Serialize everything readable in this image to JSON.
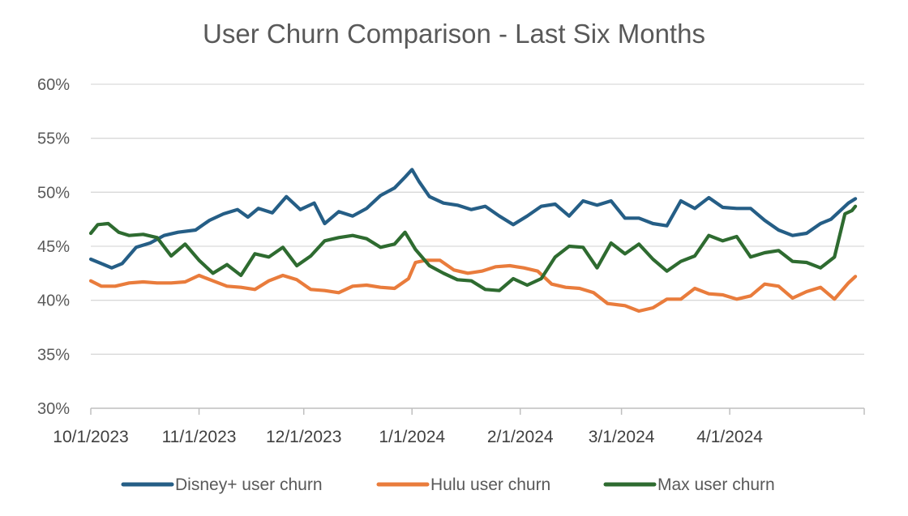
{
  "chart_data": {
    "type": "line",
    "title": "User Churn Comparison - Last Six Months",
    "xlabel": "",
    "ylabel": "",
    "ylim": [
      0.3,
      0.6
    ],
    "yticks": [
      "30%",
      "35%",
      "40%",
      "45%",
      "50%",
      "55%",
      "60%"
    ],
    "xticks": [
      "10/1/2023",
      "11/1/2023",
      "12/1/2023",
      "1/1/2024",
      "2/1/2024",
      "3/1/2024",
      "4/1/2024"
    ],
    "x_range": [
      "10/1/2023",
      "4/30/2024"
    ],
    "grid": "horizontal",
    "legend": "bottom",
    "series": [
      {
        "name": "Disney+ user churn",
        "color": "#255e86",
        "points": [
          [
            "10/1/2023",
            0.438
          ],
          [
            "10/4/2023",
            0.434
          ],
          [
            "10/7/2023",
            0.43
          ],
          [
            "10/10/2023",
            0.434
          ],
          [
            "10/14/2023",
            0.449
          ],
          [
            "10/18/2023",
            0.453
          ],
          [
            "10/22/2023",
            0.46
          ],
          [
            "10/26/2023",
            0.463
          ],
          [
            "10/31/2023",
            0.465
          ],
          [
            "11/4/2023",
            0.474
          ],
          [
            "11/8/2023",
            0.48
          ],
          [
            "11/12/2023",
            0.484
          ],
          [
            "11/15/2023",
            0.477
          ],
          [
            "11/18/2023",
            0.485
          ],
          [
            "11/22/2023",
            0.481
          ],
          [
            "11/26/2023",
            0.496
          ],
          [
            "11/30/2023",
            0.484
          ],
          [
            "12/4/2023",
            0.49
          ],
          [
            "12/7/2023",
            0.471
          ],
          [
            "12/11/2023",
            0.482
          ],
          [
            "12/15/2023",
            0.478
          ],
          [
            "12/19/2023",
            0.485
          ],
          [
            "12/23/2023",
            0.497
          ],
          [
            "12/27/2023",
            0.504
          ],
          [
            "12/30/2023",
            0.514
          ],
          [
            "1/1/2024",
            0.521
          ],
          [
            "1/3/2024",
            0.51
          ],
          [
            "1/6/2024",
            0.496
          ],
          [
            "1/10/2024",
            0.49
          ],
          [
            "1/14/2024",
            0.488
          ],
          [
            "1/18/2024",
            0.484
          ],
          [
            "1/22/2024",
            0.487
          ],
          [
            "1/26/2024",
            0.478
          ],
          [
            "1/30/2024",
            0.47
          ],
          [
            "2/3/2024",
            0.478
          ],
          [
            "2/7/2024",
            0.487
          ],
          [
            "2/11/2024",
            0.489
          ],
          [
            "2/15/2024",
            0.478
          ],
          [
            "2/19/2024",
            0.492
          ],
          [
            "2/23/2024",
            0.488
          ],
          [
            "2/27/2024",
            0.492
          ],
          [
            "3/2/2024",
            0.476
          ],
          [
            "3/6/2024",
            0.476
          ],
          [
            "3/10/2024",
            0.471
          ],
          [
            "3/14/2024",
            0.469
          ],
          [
            "3/18/2024",
            0.492
          ],
          [
            "3/22/2024",
            0.485
          ],
          [
            "3/26/2024",
            0.495
          ],
          [
            "3/30/2024",
            0.486
          ],
          [
            "4/3/2024",
            0.485
          ],
          [
            "4/7/2024",
            0.485
          ],
          [
            "4/11/2024",
            0.474
          ],
          [
            "4/15/2024",
            0.465
          ],
          [
            "4/19/2024",
            0.46
          ],
          [
            "4/23/2024",
            0.462
          ],
          [
            "4/27/2024",
            0.471
          ],
          [
            "4/30/2024",
            0.475
          ],
          [
            "5/3/2024",
            0.484
          ],
          [
            "5/5/2024",
            0.49
          ],
          [
            "5/7/2024",
            0.494
          ]
        ]
      },
      {
        "name": "Hulu user churn",
        "color": "#e97c3c",
        "points": [
          [
            "10/1/2023",
            0.418
          ],
          [
            "10/4/2023",
            0.413
          ],
          [
            "10/8/2023",
            0.413
          ],
          [
            "10/12/2023",
            0.416
          ],
          [
            "10/16/2023",
            0.417
          ],
          [
            "10/20/2023",
            0.416
          ],
          [
            "10/24/2023",
            0.416
          ],
          [
            "10/28/2023",
            0.417
          ],
          [
            "11/1/2023",
            0.423
          ],
          [
            "11/5/2023",
            0.418
          ],
          [
            "11/9/2023",
            0.413
          ],
          [
            "11/13/2023",
            0.412
          ],
          [
            "11/17/2023",
            0.41
          ],
          [
            "11/21/2023",
            0.418
          ],
          [
            "11/25/2023",
            0.423
          ],
          [
            "11/29/2023",
            0.419
          ],
          [
            "12/3/2023",
            0.41
          ],
          [
            "12/7/2023",
            0.409
          ],
          [
            "12/11/2023",
            0.407
          ],
          [
            "12/15/2023",
            0.413
          ],
          [
            "12/19/2023",
            0.414
          ],
          [
            "12/23/2023",
            0.412
          ],
          [
            "12/27/2023",
            0.411
          ],
          [
            "12/31/2023",
            0.42
          ],
          [
            "1/2/2024",
            0.435
          ],
          [
            "1/5/2024",
            0.437
          ],
          [
            "1/9/2024",
            0.437
          ],
          [
            "1/13/2024",
            0.428
          ],
          [
            "1/17/2024",
            0.425
          ],
          [
            "1/21/2024",
            0.427
          ],
          [
            "1/25/2024",
            0.431
          ],
          [
            "1/29/2024",
            0.432
          ],
          [
            "2/2/2024",
            0.43
          ],
          [
            "2/6/2024",
            0.427
          ],
          [
            "2/10/2024",
            0.415
          ],
          [
            "2/14/2024",
            0.412
          ],
          [
            "2/18/2024",
            0.411
          ],
          [
            "2/22/2024",
            0.407
          ],
          [
            "2/26/2024",
            0.397
          ],
          [
            "3/2/2024",
            0.395
          ],
          [
            "3/6/2024",
            0.39
          ],
          [
            "3/10/2024",
            0.393
          ],
          [
            "3/14/2024",
            0.401
          ],
          [
            "3/18/2024",
            0.401
          ],
          [
            "3/22/2024",
            0.411
          ],
          [
            "3/26/2024",
            0.406
          ],
          [
            "3/30/2024",
            0.405
          ],
          [
            "4/3/2024",
            0.401
          ],
          [
            "4/7/2024",
            0.404
          ],
          [
            "4/11/2024",
            0.415
          ],
          [
            "4/15/2024",
            0.413
          ],
          [
            "4/19/2024",
            0.402
          ],
          [
            "4/23/2024",
            0.408
          ],
          [
            "4/27/2024",
            0.412
          ],
          [
            "5/1/2024",
            0.401
          ],
          [
            "5/5/2024",
            0.416
          ],
          [
            "5/7/2024",
            0.422
          ]
        ]
      },
      {
        "name": "Max user churn",
        "color": "#2e6b30",
        "points": [
          [
            "10/1/2023",
            0.462
          ],
          [
            "10/3/2023",
            0.47
          ],
          [
            "10/6/2023",
            0.471
          ],
          [
            "10/9/2023",
            0.463
          ],
          [
            "10/12/2023",
            0.46
          ],
          [
            "10/16/2023",
            0.461
          ],
          [
            "10/20/2023",
            0.458
          ],
          [
            "10/24/2023",
            0.441
          ],
          [
            "10/28/2023",
            0.452
          ],
          [
            "11/1/2023",
            0.437
          ],
          [
            "11/5/2023",
            0.425
          ],
          [
            "11/9/2023",
            0.433
          ],
          [
            "11/13/2023",
            0.423
          ],
          [
            "11/17/2023",
            0.443
          ],
          [
            "11/21/2023",
            0.44
          ],
          [
            "11/25/2023",
            0.449
          ],
          [
            "11/29/2023",
            0.432
          ],
          [
            "12/3/2023",
            0.441
          ],
          [
            "12/7/2023",
            0.455
          ],
          [
            "12/11/2023",
            0.458
          ],
          [
            "12/15/2023",
            0.46
          ],
          [
            "12/19/2023",
            0.457
          ],
          [
            "12/23/2023",
            0.449
          ],
          [
            "12/27/2023",
            0.452
          ],
          [
            "12/30/2023",
            0.463
          ],
          [
            "1/2/2024",
            0.447
          ],
          [
            "1/6/2024",
            0.432
          ],
          [
            "1/10/2024",
            0.425
          ],
          [
            "1/14/2024",
            0.419
          ],
          [
            "1/18/2024",
            0.418
          ],
          [
            "1/22/2024",
            0.41
          ],
          [
            "1/26/2024",
            0.409
          ],
          [
            "1/30/2024",
            0.42
          ],
          [
            "2/3/2024",
            0.414
          ],
          [
            "2/7/2024",
            0.42
          ],
          [
            "2/11/2024",
            0.44
          ],
          [
            "2/15/2024",
            0.45
          ],
          [
            "2/19/2024",
            0.449
          ],
          [
            "2/23/2024",
            0.43
          ],
          [
            "2/27/2024",
            0.453
          ],
          [
            "3/2/2024",
            0.443
          ],
          [
            "3/6/2024",
            0.452
          ],
          [
            "3/10/2024",
            0.438
          ],
          [
            "3/14/2024",
            0.427
          ],
          [
            "3/18/2024",
            0.436
          ],
          [
            "3/22/2024",
            0.441
          ],
          [
            "3/26/2024",
            0.46
          ],
          [
            "3/30/2024",
            0.455
          ],
          [
            "4/3/2024",
            0.459
          ],
          [
            "4/7/2024",
            0.44
          ],
          [
            "4/11/2024",
            0.444
          ],
          [
            "4/15/2024",
            0.446
          ],
          [
            "4/19/2024",
            0.436
          ],
          [
            "4/23/2024",
            0.435
          ],
          [
            "4/27/2024",
            0.43
          ],
          [
            "5/1/2024",
            0.44
          ],
          [
            "5/4/2024",
            0.48
          ],
          [
            "5/6/2024",
            0.483
          ],
          [
            "5/7/2024",
            0.487
          ]
        ]
      }
    ]
  }
}
